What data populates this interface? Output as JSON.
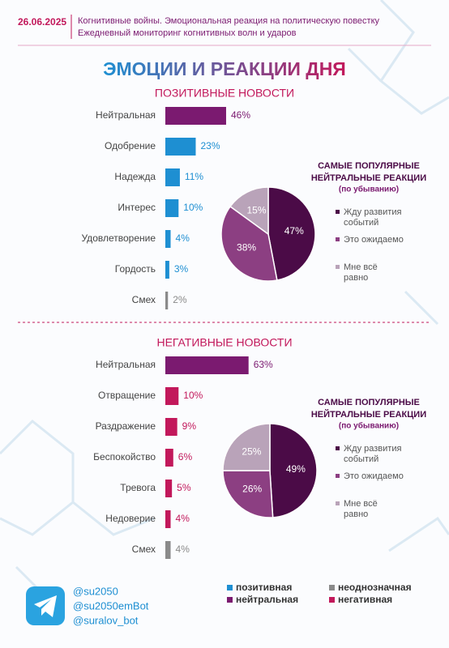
{
  "header": {
    "date": "26.06.2025",
    "line1": "Когнитивные войны. Эмоциональная реакция на политическую повестку",
    "line2": "Ежедневный мониторинг когнитивных волн и ударов"
  },
  "title": "ЭМОЦИИ И РЕАКЦИИ ДНЯ",
  "chart_data": [
    {
      "type": "bar",
      "title": "ПОЗИТИВНЫЕ НОВОСТИ",
      "categories": [
        "Нейтральная",
        "Одобрение",
        "Надежда",
        "Интерес",
        "Удовлетворение",
        "Гордость",
        "Смех"
      ],
      "values": [
        46,
        23,
        11,
        10,
        4,
        3,
        2
      ],
      "value_labels": [
        "46%",
        "23%",
        "11%",
        "10%",
        "4%",
        "3%",
        "2%"
      ],
      "colors": [
        "#7b1a70",
        "#1e8fd2",
        "#1e8fd2",
        "#1e8fd2",
        "#1e8fd2",
        "#1e8fd2",
        "#8a8a8a"
      ]
    },
    {
      "type": "pie",
      "title": "САМЫЕ ПОПУЛЯРНЫЕ НЕЙТРАЛЬНЫЕ РЕАКЦИИ",
      "subtitle": "(по убыванию)",
      "categories": [
        "Жду развития событий",
        "Это ожидаемо",
        "Мне всё равно"
      ],
      "values": [
        47,
        38,
        15
      ],
      "value_labels": [
        "47%",
        "38%",
        "15%"
      ],
      "colors": [
        "#4b0b47",
        "#8c3f82",
        "#b9a3b9"
      ]
    },
    {
      "type": "bar",
      "title": "НЕГАТИВНЫЕ НОВОСТИ",
      "categories": [
        "Нейтральная",
        "Отвращение",
        "Раздражение",
        "Беспокойство",
        "Тревога",
        "Недоверие",
        "Смех"
      ],
      "values": [
        63,
        10,
        9,
        6,
        5,
        4,
        4
      ],
      "value_labels": [
        "63%",
        "10%",
        "9%",
        "6%",
        "5%",
        "4%",
        "4%"
      ],
      "colors": [
        "#7b1a70",
        "#c2185b",
        "#c2185b",
        "#c2185b",
        "#c2185b",
        "#c2185b",
        "#8a8a8a"
      ]
    },
    {
      "type": "pie",
      "title": "САМЫЕ ПОПУЛЯРНЫЕ НЕЙТРАЛЬНЫЕ РЕАКЦИИ",
      "subtitle": "(по убыванию)",
      "categories": [
        "Жду развития событий",
        "Это ожидаемо",
        "Мне всё равно"
      ],
      "values": [
        49,
        26,
        25
      ],
      "value_labels": [
        "49%",
        "26%",
        "25%"
      ],
      "colors": [
        "#4b0b47",
        "#8c3f82",
        "#b9a3b9"
      ]
    }
  ],
  "footer": {
    "handles": [
      "@su2050",
      "@su2050emBot",
      "@suralov_bot"
    ],
    "legend": [
      {
        "label": "позитивная",
        "color": "#1e8fd2"
      },
      {
        "label": "неоднозначная",
        "color": "#8a8a8a"
      },
      {
        "label": "нейтральная",
        "color": "#7b1a70"
      },
      {
        "label": "негативная",
        "color": "#c2185b"
      }
    ]
  }
}
